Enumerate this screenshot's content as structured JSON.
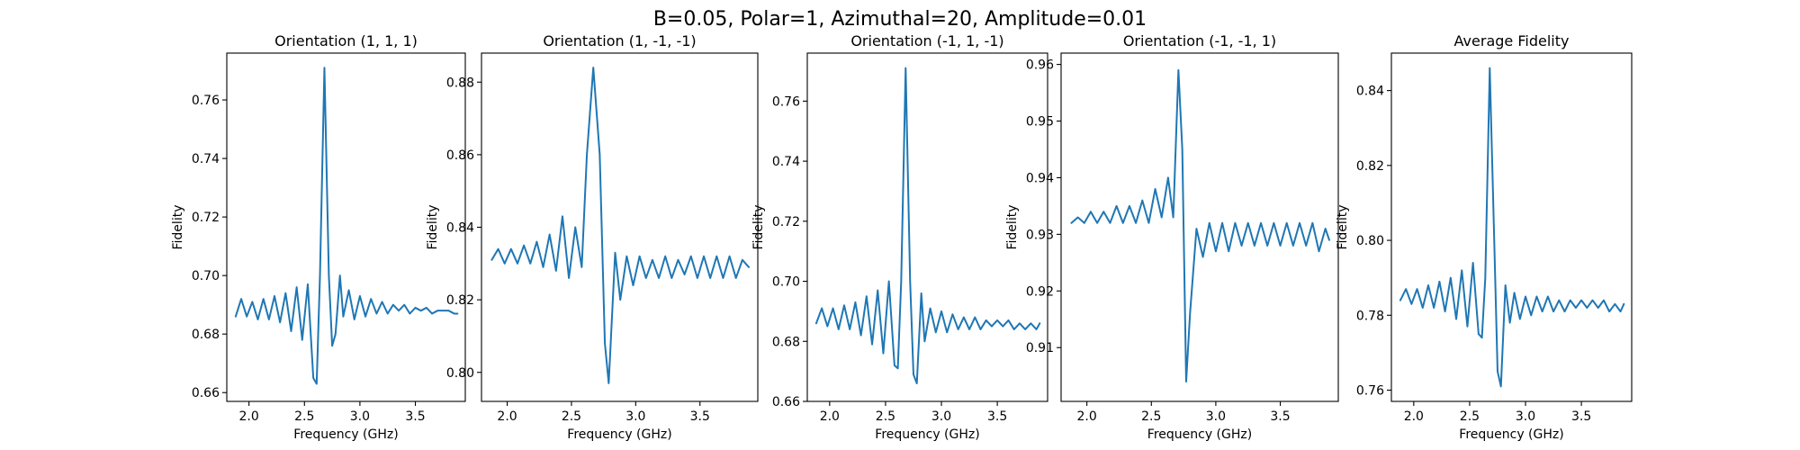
{
  "figure": {
    "suptitle": "B=0.05, Polar=1, Azimuthal=20, Amplitude=0.01"
  },
  "colors": {
    "series": "#1f77b4"
  },
  "chart_data": [
    {
      "type": "line",
      "title": "Orientation (1, 1, 1)",
      "xlabel": "Frequency (GHz)",
      "ylabel": "Fidelity",
      "xlim": [
        1.8,
        3.95
      ],
      "ylim": [
        0.657,
        0.776
      ],
      "xticks": [
        "2.0",
        "2.5",
        "3.0",
        "3.5"
      ],
      "yticks": [
        "0.66",
        "0.68",
        "0.70",
        "0.72",
        "0.74",
        "0.76"
      ],
      "grid": false,
      "series": [
        {
          "x": [
            1.88,
            1.93,
            1.98,
            2.03,
            2.08,
            2.13,
            2.18,
            2.23,
            2.28,
            2.33,
            2.38,
            2.43,
            2.48,
            2.53,
            2.58,
            2.61,
            2.64,
            2.68,
            2.72,
            2.75,
            2.78,
            2.82,
            2.85,
            2.9,
            2.95,
            3.0,
            3.05,
            3.1,
            3.15,
            3.2,
            3.25,
            3.3,
            3.35,
            3.4,
            3.45,
            3.5,
            3.55,
            3.6,
            3.65,
            3.7,
            3.75,
            3.8,
            3.85,
            3.88
          ],
          "y": [
            0.686,
            0.692,
            0.686,
            0.691,
            0.685,
            0.692,
            0.685,
            0.693,
            0.684,
            0.694,
            0.681,
            0.696,
            0.678,
            0.697,
            0.665,
            0.663,
            0.7,
            0.771,
            0.7,
            0.676,
            0.68,
            0.7,
            0.686,
            0.695,
            0.685,
            0.693,
            0.686,
            0.692,
            0.687,
            0.691,
            0.687,
            0.69,
            0.688,
            0.69,
            0.687,
            0.689,
            0.688,
            0.689,
            0.687,
            0.688,
            0.688,
            0.688,
            0.687,
            0.687
          ]
        }
      ]
    },
    {
      "type": "line",
      "title": "Orientation (1, -1, -1)",
      "xlabel": "Frequency (GHz)",
      "ylabel": "Fidelity",
      "xlim": [
        1.8,
        3.95
      ],
      "ylim": [
        0.792,
        0.888
      ],
      "xticks": [
        "2.0",
        "2.5",
        "3.0",
        "3.5"
      ],
      "yticks": [
        "0.80",
        "0.82",
        "0.84",
        "0.86",
        "0.88"
      ],
      "grid": false,
      "series": [
        {
          "x": [
            1.88,
            1.93,
            1.98,
            2.03,
            2.08,
            2.13,
            2.18,
            2.23,
            2.28,
            2.33,
            2.38,
            2.43,
            2.48,
            2.53,
            2.58,
            2.62,
            2.67,
            2.72,
            2.76,
            2.79,
            2.84,
            2.88,
            2.93,
            2.98,
            3.03,
            3.08,
            3.13,
            3.18,
            3.23,
            3.28,
            3.33,
            3.38,
            3.43,
            3.48,
            3.53,
            3.58,
            3.63,
            3.68,
            3.73,
            3.78,
            3.83,
            3.88
          ],
          "y": [
            0.831,
            0.834,
            0.83,
            0.834,
            0.83,
            0.835,
            0.83,
            0.836,
            0.829,
            0.838,
            0.828,
            0.843,
            0.826,
            0.84,
            0.829,
            0.86,
            0.884,
            0.86,
            0.808,
            0.797,
            0.833,
            0.82,
            0.832,
            0.824,
            0.832,
            0.826,
            0.831,
            0.826,
            0.832,
            0.826,
            0.831,
            0.827,
            0.832,
            0.826,
            0.832,
            0.826,
            0.832,
            0.826,
            0.832,
            0.826,
            0.831,
            0.829
          ]
        }
      ]
    },
    {
      "type": "line",
      "title": "Orientation (-1, 1, -1)",
      "xlabel": "Frequency (GHz)",
      "ylabel": "Fidelity",
      "xlim": [
        1.8,
        3.95
      ],
      "ylim": [
        0.66,
        0.776
      ],
      "xticks": [
        "2.0",
        "2.5",
        "3.0",
        "3.5"
      ],
      "yticks": [
        "0.66",
        "0.68",
        "0.70",
        "0.72",
        "0.74",
        "0.76"
      ],
      "grid": false,
      "series": [
        {
          "x": [
            1.88,
            1.93,
            1.98,
            2.03,
            2.08,
            2.13,
            2.18,
            2.23,
            2.28,
            2.33,
            2.38,
            2.43,
            2.48,
            2.53,
            2.58,
            2.61,
            2.64,
            2.68,
            2.72,
            2.75,
            2.78,
            2.82,
            2.85,
            2.9,
            2.95,
            3.0,
            3.05,
            3.1,
            3.15,
            3.2,
            3.25,
            3.3,
            3.35,
            3.4,
            3.45,
            3.5,
            3.55,
            3.6,
            3.65,
            3.7,
            3.75,
            3.8,
            3.85,
            3.88
          ],
          "y": [
            0.686,
            0.691,
            0.685,
            0.691,
            0.684,
            0.692,
            0.684,
            0.693,
            0.682,
            0.695,
            0.679,
            0.697,
            0.676,
            0.7,
            0.672,
            0.671,
            0.7,
            0.771,
            0.7,
            0.669,
            0.666,
            0.696,
            0.68,
            0.691,
            0.683,
            0.69,
            0.683,
            0.689,
            0.684,
            0.688,
            0.684,
            0.688,
            0.684,
            0.687,
            0.685,
            0.687,
            0.685,
            0.687,
            0.684,
            0.686,
            0.684,
            0.686,
            0.684,
            0.686
          ]
        }
      ]
    },
    {
      "type": "line",
      "title": "Orientation (-1, -1, 1)",
      "xlabel": "Frequency (GHz)",
      "ylabel": "Fidelity",
      "xlim": [
        1.8,
        3.95
      ],
      "ylim": [
        0.9005,
        0.962
      ],
      "xticks": [
        "2.0",
        "2.5",
        "3.0",
        "3.5"
      ],
      "yticks": [
        "0.91",
        "0.92",
        "0.93",
        "0.94",
        "0.95",
        "0.96"
      ],
      "grid": false,
      "series": [
        {
          "x": [
            1.88,
            1.93,
            1.98,
            2.03,
            2.08,
            2.13,
            2.18,
            2.23,
            2.28,
            2.33,
            2.38,
            2.43,
            2.48,
            2.53,
            2.58,
            2.63,
            2.67,
            2.71,
            2.74,
            2.77,
            2.8,
            2.85,
            2.9,
            2.95,
            3.0,
            3.05,
            3.1,
            3.15,
            3.2,
            3.25,
            3.3,
            3.35,
            3.4,
            3.45,
            3.5,
            3.55,
            3.6,
            3.65,
            3.7,
            3.75,
            3.8,
            3.85,
            3.88
          ],
          "y": [
            0.932,
            0.933,
            0.932,
            0.934,
            0.932,
            0.934,
            0.932,
            0.935,
            0.932,
            0.935,
            0.932,
            0.936,
            0.932,
            0.938,
            0.933,
            0.94,
            0.933,
            0.959,
            0.945,
            0.904,
            0.916,
            0.931,
            0.926,
            0.932,
            0.927,
            0.932,
            0.927,
            0.932,
            0.928,
            0.932,
            0.928,
            0.932,
            0.928,
            0.932,
            0.928,
            0.932,
            0.928,
            0.932,
            0.928,
            0.932,
            0.927,
            0.931,
            0.929
          ]
        }
      ]
    },
    {
      "type": "line",
      "title": "Average Fidelity",
      "xlabel": "Frequency (GHz)",
      "ylabel": "Fidelity",
      "xlim": [
        1.8,
        3.95
      ],
      "ylim": [
        0.757,
        0.85
      ],
      "xticks": [
        "2.0",
        "2.5",
        "3.0",
        "3.5"
      ],
      "yticks": [
        "0.76",
        "0.78",
        "0.80",
        "0.82",
        "0.84"
      ],
      "grid": false,
      "series": [
        {
          "x": [
            1.88,
            1.93,
            1.98,
            2.03,
            2.08,
            2.13,
            2.18,
            2.23,
            2.28,
            2.33,
            2.38,
            2.43,
            2.48,
            2.53,
            2.58,
            2.61,
            2.64,
            2.68,
            2.72,
            2.75,
            2.78,
            2.82,
            2.86,
            2.9,
            2.95,
            3.0,
            3.05,
            3.1,
            3.15,
            3.2,
            3.25,
            3.3,
            3.35,
            3.4,
            3.45,
            3.5,
            3.55,
            3.6,
            3.65,
            3.7,
            3.75,
            3.8,
            3.85,
            3.88
          ],
          "y": [
            0.784,
            0.787,
            0.783,
            0.787,
            0.782,
            0.788,
            0.782,
            0.789,
            0.781,
            0.79,
            0.779,
            0.792,
            0.777,
            0.794,
            0.775,
            0.774,
            0.79,
            0.846,
            0.8,
            0.765,
            0.761,
            0.788,
            0.778,
            0.786,
            0.779,
            0.785,
            0.78,
            0.785,
            0.781,
            0.785,
            0.781,
            0.784,
            0.781,
            0.784,
            0.782,
            0.784,
            0.782,
            0.784,
            0.782,
            0.784,
            0.781,
            0.783,
            0.781,
            0.783
          ]
        }
      ]
    }
  ]
}
